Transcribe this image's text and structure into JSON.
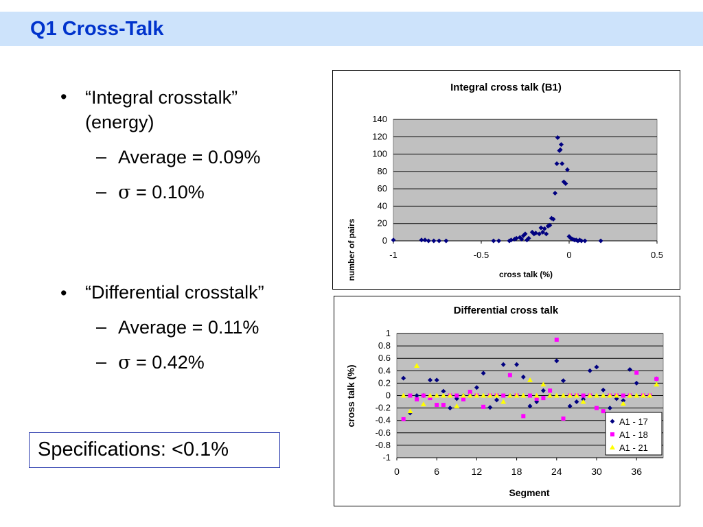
{
  "slide": {
    "title": "Q1 Cross-Talk",
    "bullets": [
      {
        "text_line1": "“Integral crosstalk”",
        "text_line2": "(energy)",
        "sub": [
          {
            "label": "Average = 0.09%"
          },
          {
            "symbol": "σ",
            "label": " = 0.10%"
          }
        ]
      },
      {
        "text_line1": "“Differential crosstalk”",
        "sub": [
          {
            "label": "Average = 0.11%"
          },
          {
            "symbol": "σ",
            "label": " = 0.42%"
          }
        ]
      }
    ],
    "bullet_glyph": "•",
    "dash_glyph": "–",
    "spec": "Specifications:  <0.1%"
  },
  "chart_data": [
    {
      "type": "scatter",
      "title": "Integral cross talk (B1)",
      "xlabel": "cross talk (%)",
      "ylabel": "number of pairs",
      "xlim": [
        -1,
        0.5
      ],
      "ylim": [
        0,
        140
      ],
      "xticks": [
        "-1",
        "-0.5",
        "0",
        "0.5"
      ],
      "yticks": [
        "0",
        "20",
        "40",
        "60",
        "80",
        "100",
        "120",
        "140"
      ],
      "grid": true,
      "plot_bg": "#c0c0c0",
      "series": [
        {
          "color": "#000080",
          "marker": "diamond",
          "points": [
            [
              -1.0,
              1
            ],
            [
              -0.84,
              1
            ],
            [
              -0.82,
              1
            ],
            [
              -0.8,
              0
            ],
            [
              -0.77,
              0
            ],
            [
              -0.74,
              0
            ],
            [
              -0.7,
              0
            ],
            [
              -0.43,
              0
            ],
            [
              -0.4,
              0
            ],
            [
              -0.34,
              0
            ],
            [
              -0.33,
              1
            ],
            [
              -0.31,
              2
            ],
            [
              -0.3,
              3
            ],
            [
              -0.28,
              4
            ],
            [
              -0.27,
              2
            ],
            [
              -0.26,
              6
            ],
            [
              -0.25,
              8
            ],
            [
              -0.24,
              1
            ],
            [
              -0.23,
              3
            ],
            [
              -0.21,
              10
            ],
            [
              -0.2,
              8
            ],
            [
              -0.19,
              9
            ],
            [
              -0.17,
              8
            ],
            [
              -0.16,
              15
            ],
            [
              -0.15,
              10
            ],
            [
              -0.14,
              14
            ],
            [
              -0.13,
              8
            ],
            [
              -0.12,
              17
            ],
            [
              -0.11,
              18
            ],
            [
              -0.1,
              26
            ],
            [
              -0.09,
              25
            ],
            [
              -0.08,
              55
            ],
            [
              -0.07,
              89
            ],
            [
              -0.065,
              119
            ],
            [
              -0.055,
              104
            ],
            [
              -0.05,
              105
            ],
            [
              -0.045,
              111
            ],
            [
              -0.04,
              89
            ],
            [
              -0.03,
              68
            ],
            [
              -0.02,
              66
            ],
            [
              -0.01,
              82
            ],
            [
              0.0,
              5
            ],
            [
              0.01,
              3
            ],
            [
              0.02,
              2
            ],
            [
              0.03,
              1
            ],
            [
              0.04,
              1
            ],
            [
              0.05,
              0
            ],
            [
              0.06,
              1
            ],
            [
              0.07,
              0
            ],
            [
              0.09,
              0
            ],
            [
              0.18,
              0
            ]
          ]
        }
      ]
    },
    {
      "type": "scatter",
      "title": "Differential cross talk",
      "xlabel": "Segment",
      "ylabel": "cross talk (%)",
      "xlim": [
        0,
        40
      ],
      "ylim": [
        -1,
        1
      ],
      "xticks": [
        "0",
        "6",
        "12",
        "18",
        "24",
        "30",
        "36"
      ],
      "yticks": [
        "-1",
        "-0.8",
        "-0.6",
        "-0.4",
        "-0.2",
        "0",
        "0.2",
        "0.4",
        "0.6",
        "0.8",
        "1"
      ],
      "grid": true,
      "plot_bg": "#c0c0c0",
      "legend_position": "bottom-right",
      "series": [
        {
          "name": "A1 - 17",
          "color": "#000080",
          "marker": "diamond",
          "values": [
            0.28,
            -0.28,
            0.0,
            0.0,
            0.25,
            0.25,
            0.07,
            -0.2,
            -0.05,
            0.0,
            0.0,
            0.13,
            0.36,
            -0.19,
            -0.07,
            0.5,
            0.0,
            0.5,
            0.3,
            -0.17,
            -0.1,
            0.08,
            0.0,
            0.56,
            0.24,
            -0.17,
            -0.1,
            -0.06,
            0.4,
            0.46,
            0.09,
            -0.2,
            -0.05,
            -0.08,
            0.42,
            0.2,
            0.0,
            0.0,
            0.27
          ]
        },
        {
          "name": "A1 - 18",
          "color": "#ff00ff",
          "marker": "square",
          "values": [
            -0.38,
            0.0,
            -0.06,
            0.0,
            -0.04,
            -0.15,
            -0.15,
            0.0,
            0.0,
            -0.06,
            0.06,
            0.0,
            -0.18,
            0.0,
            0.0,
            0.0,
            0.33,
            0.0,
            -0.33,
            0.0,
            -0.05,
            -0.04,
            0.08,
            0.9,
            -0.37,
            0.0,
            0.0,
            0.0,
            0.0,
            -0.2,
            -0.25,
            0.0,
            0.0,
            0.0,
            0.0,
            0.37,
            0.0,
            0.0,
            0.27
          ]
        },
        {
          "name": "A1 - 21",
          "color": "#ffff00",
          "marker": "triangle",
          "values": [
            0.0,
            -0.25,
            0.48,
            -0.14,
            0.0,
            0.0,
            0.0,
            0.0,
            -0.17,
            0.0,
            0.0,
            0.0,
            0.0,
            0.0,
            0.0,
            -0.1,
            0.0,
            0.0,
            0.0,
            0.25,
            0.0,
            0.18,
            0.0,
            0.0,
            0.0,
            0.0,
            0.0,
            -0.1,
            0.0,
            0.0,
            0.0,
            0.0,
            0.0,
            -0.13,
            0.0,
            0.0,
            0.0,
            0.0,
            0.18
          ]
        }
      ]
    }
  ]
}
